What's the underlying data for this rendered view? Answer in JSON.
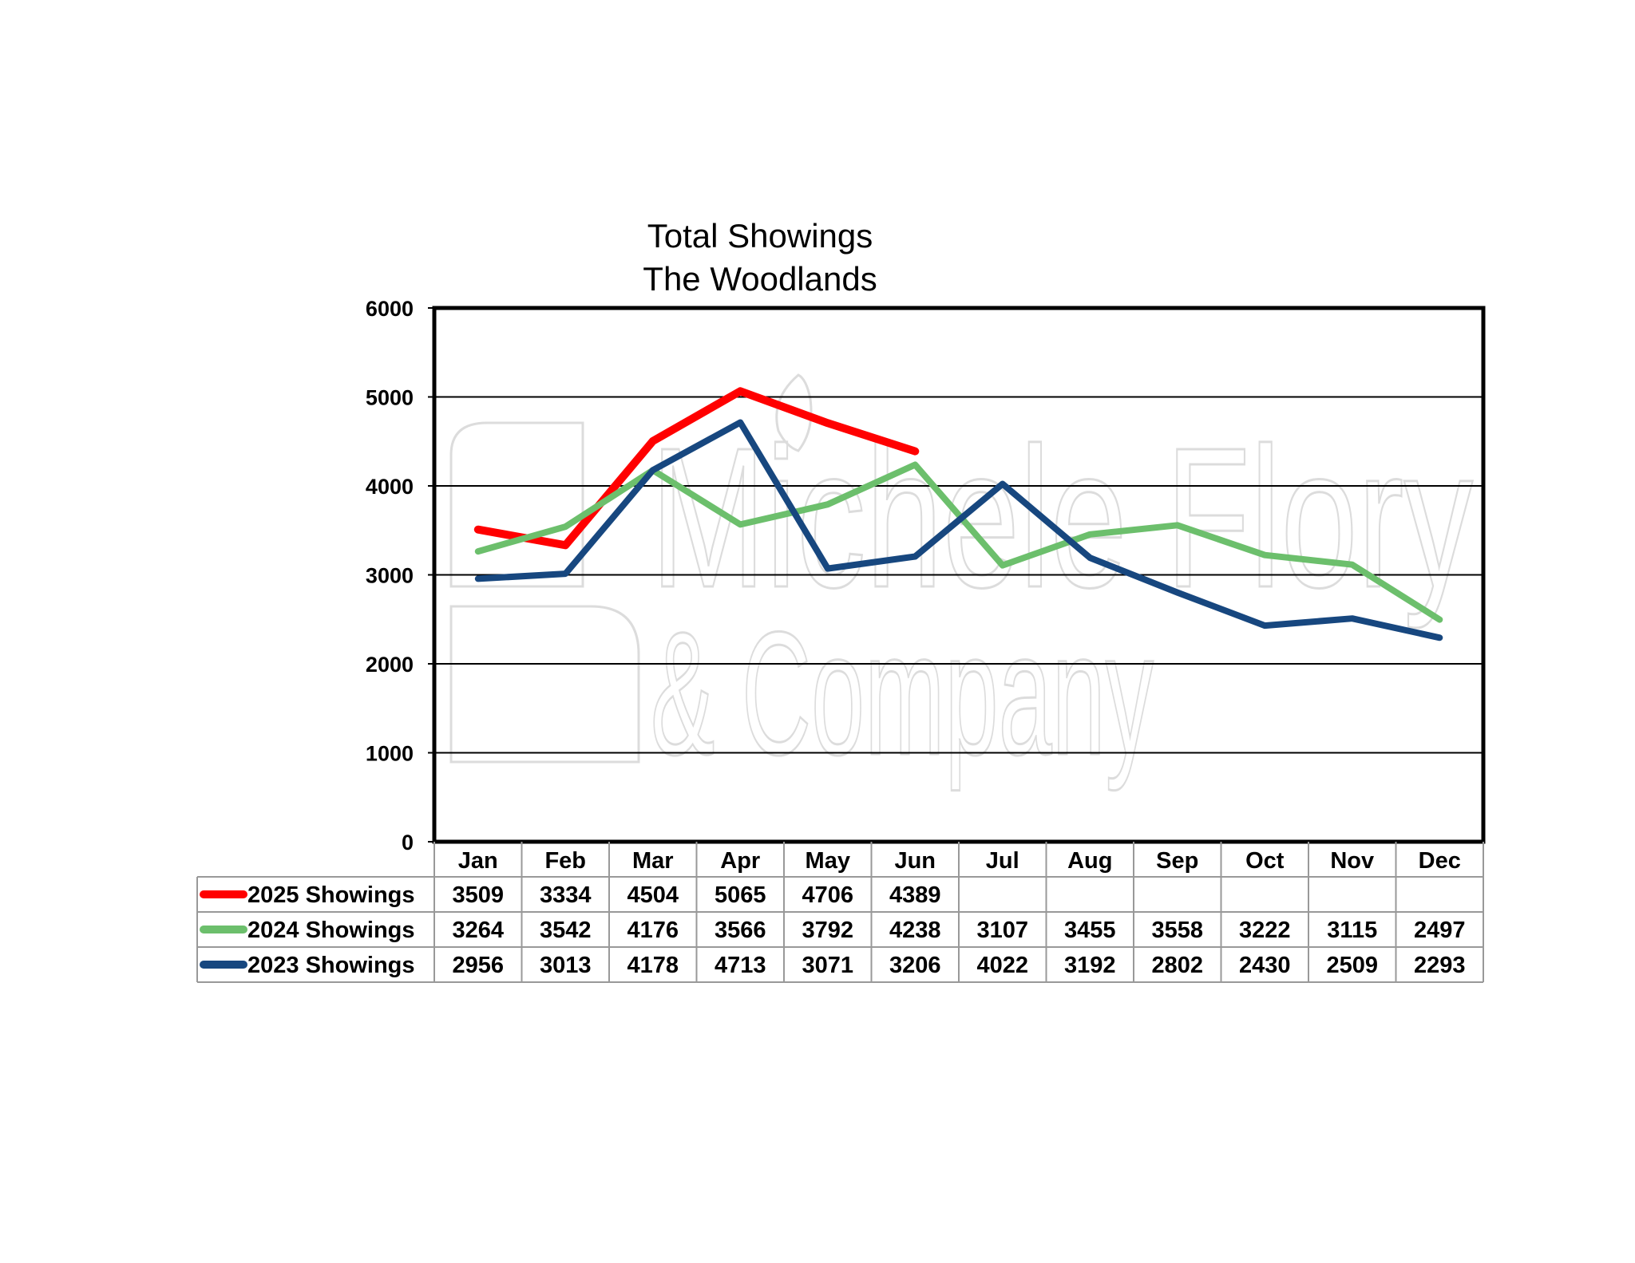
{
  "chart_data": {
    "type": "line",
    "title": [
      "Total Showings",
      "The Woodlands"
    ],
    "categories": [
      "Jan",
      "Feb",
      "Mar",
      "Apr",
      "May",
      "Jun",
      "Jul",
      "Aug",
      "Sep",
      "Oct",
      "Nov",
      "Dec"
    ],
    "ylim": [
      0,
      6000
    ],
    "yticks": [
      0,
      1000,
      2000,
      3000,
      4000,
      5000,
      6000
    ],
    "grid": true,
    "legend": "data-table-left",
    "series": [
      {
        "name": "2025 Showings",
        "color": "#ff0000",
        "values": [
          3509,
          3334,
          4504,
          5065,
          4706,
          4389,
          null,
          null,
          null,
          null,
          null,
          null
        ]
      },
      {
        "name": "2024 Showings",
        "color": "#6cbf6c",
        "values": [
          3264,
          3542,
          4176,
          3566,
          3792,
          4238,
          3107,
          3455,
          3558,
          3222,
          3115,
          2497
        ]
      },
      {
        "name": "2023 Showings",
        "color": "#17477f",
        "values": [
          2956,
          3013,
          4178,
          4713,
          3071,
          3206,
          4022,
          3192,
          2802,
          2430,
          2509,
          2293
        ]
      }
    ]
  },
  "watermark": {
    "line1": "Michele Flory",
    "line2": "& Company"
  }
}
